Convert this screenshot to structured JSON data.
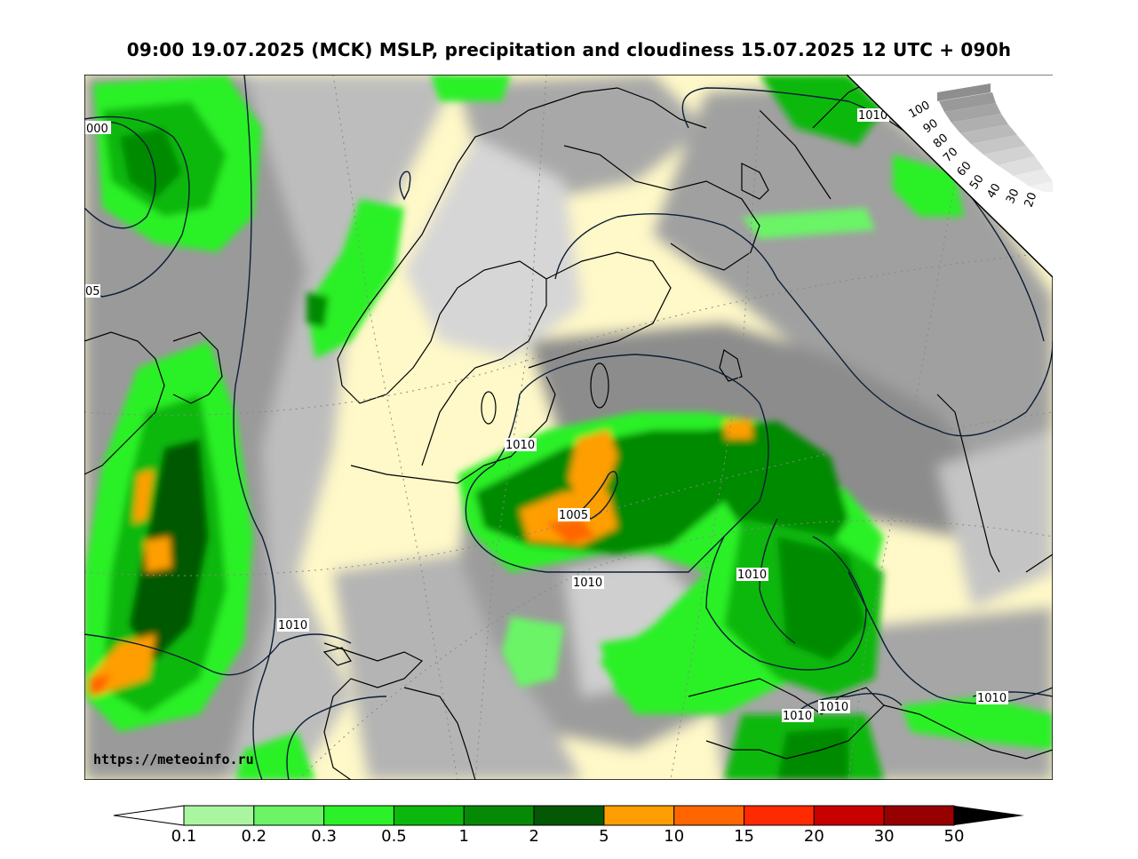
{
  "title": "09:00 19.07.2025 (MCK) MSLP, precipitation and cloudiness 15.07.2025 12 UTC + 090h",
  "source_url": "https://meteoinfo.ru",
  "cloudiness_scale": {
    "labels": [
      "100",
      "90",
      "80",
      "70",
      "60",
      "50",
      "40",
      "30",
      "20"
    ]
  },
  "isobar_labels": [
    "000",
    "05",
    "1010",
    "1010",
    "1005",
    "1010",
    "1010",
    "1010",
    "1010",
    "1010",
    "1010",
    "1010"
  ],
  "precip_colorbar": {
    "ticks": [
      "0.1",
      "0.2",
      "0.3",
      "0.5",
      "1",
      "2",
      "5",
      "10",
      "15",
      "20",
      "30",
      "50"
    ],
    "colors": [
      "#aaf6a0",
      "#6af466",
      "#2cf028",
      "#0cb80c",
      "#068a06",
      "#045804",
      "#ff9e00",
      "#ff6600",
      "#ff2a00",
      "#c80000",
      "#960000"
    ]
  }
}
